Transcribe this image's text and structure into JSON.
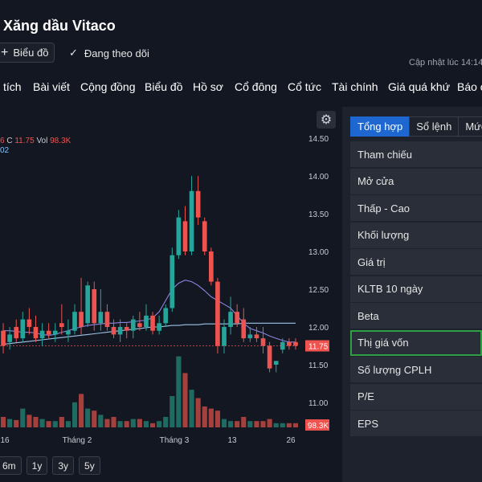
{
  "header": {
    "title": "i Xăng dầu Vitaco",
    "chart_button": "Biểu đồ",
    "follow_label": "Đang theo dõi",
    "updated": "Cập nhật lúc  14:14"
  },
  "nav": [
    "tích",
    "Bài viết",
    "Cộng đồng",
    "Biểu đồ",
    "Hồ sơ",
    "Cổ đông",
    "Cổ tức",
    "Tài chính",
    "Giá quá khứ",
    "Báo c"
  ],
  "chart": {
    "legend": {
      "prefix": "6",
      "c_label": "C",
      "c_value": "11.75",
      "vol_label": "Vol",
      "vol_value": "98.3K",
      "line2": "02"
    },
    "price_axis": [
      "14.50",
      "14.00",
      "13.50",
      "13.00",
      "12.50",
      "12.00",
      "11.75",
      "11.50",
      "11.00"
    ],
    "last_price": "11.75",
    "last_volume": "98.3K",
    "time_axis": [
      "16",
      "Tháng 2",
      "Tháng 3",
      "13",
      "26"
    ],
    "ranges": [
      "6m",
      "1y",
      "3y",
      "5y"
    ],
    "colors": {
      "up": "#26a69a",
      "down": "#ef5350",
      "ma": "#8a85e0",
      "ma_long": "#9ec3e6",
      "bg": "#131722"
    }
  },
  "sidebar": {
    "tabs": [
      "Tổng hợp",
      "Sổ lệnh",
      "Mức"
    ],
    "rows": [
      "Tham chiếu",
      "Mở cửa",
      "Thấp - Cao",
      "Khối lượng",
      "Giá trị",
      "KLTB 10 ngày",
      "Beta",
      "Thị giá vốn",
      "Số lượng CPLH",
      "P/E",
      "EPS"
    ]
  },
  "chart_data": {
    "type": "candlestick",
    "ylim": [
      10.85,
      14.55
    ],
    "candles": [
      {
        "o": 11.95,
        "h": 12.05,
        "l": 11.65,
        "c": 11.75,
        "v": 0.5
      },
      {
        "o": 11.8,
        "h": 12.0,
        "l": 11.7,
        "c": 11.9,
        "v": 0.4
      },
      {
        "o": 12.0,
        "h": 12.1,
        "l": 11.8,
        "c": 11.85,
        "v": 0.35
      },
      {
        "o": 11.85,
        "h": 12.2,
        "l": 11.8,
        "c": 12.1,
        "v": 0.9
      },
      {
        "o": 12.1,
        "h": 12.25,
        "l": 11.9,
        "c": 12.0,
        "v": 0.6
      },
      {
        "o": 12.0,
        "h": 12.15,
        "l": 11.8,
        "c": 11.85,
        "v": 0.5
      },
      {
        "o": 11.85,
        "h": 12.05,
        "l": 11.75,
        "c": 11.95,
        "v": 0.4
      },
      {
        "o": 11.95,
        "h": 12.05,
        "l": 11.85,
        "c": 11.9,
        "v": 0.3
      },
      {
        "o": 11.9,
        "h": 12.05,
        "l": 11.8,
        "c": 11.95,
        "v": 0.3
      },
      {
        "o": 12.05,
        "h": 12.3,
        "l": 11.9,
        "c": 12.0,
        "v": 0.5
      },
      {
        "o": 11.9,
        "h": 12.1,
        "l": 11.8,
        "c": 11.95,
        "v": 0.3
      },
      {
        "o": 11.95,
        "h": 12.3,
        "l": 11.9,
        "c": 12.2,
        "v": 1.2
      },
      {
        "o": 12.2,
        "h": 12.65,
        "l": 11.9,
        "c": 12.0,
        "v": 1.6
      },
      {
        "o": 12.05,
        "h": 12.6,
        "l": 12.0,
        "c": 12.55,
        "v": 0.9
      },
      {
        "o": 12.5,
        "h": 12.6,
        "l": 11.95,
        "c": 12.05,
        "v": 0.8
      },
      {
        "o": 12.05,
        "h": 12.5,
        "l": 11.95,
        "c": 12.2,
        "v": 0.6
      },
      {
        "o": 12.2,
        "h": 12.3,
        "l": 11.95,
        "c": 12.0,
        "v": 0.4
      },
      {
        "o": 12.0,
        "h": 12.1,
        "l": 11.85,
        "c": 11.9,
        "v": 0.5
      },
      {
        "o": 11.9,
        "h": 12.1,
        "l": 11.8,
        "c": 12.0,
        "v": 0.3
      },
      {
        "o": 12.0,
        "h": 12.05,
        "l": 11.85,
        "c": 11.95,
        "v": 0.3
      },
      {
        "o": 11.95,
        "h": 12.15,
        "l": 11.85,
        "c": 12.1,
        "v": 0.4
      },
      {
        "o": 12.05,
        "h": 12.2,
        "l": 11.95,
        "c": 12.0,
        "v": 0.4
      },
      {
        "o": 12.0,
        "h": 12.3,
        "l": 11.95,
        "c": 12.15,
        "v": 0.3
      },
      {
        "o": 12.15,
        "h": 12.2,
        "l": 11.9,
        "c": 11.95,
        "v": 0.2
      },
      {
        "o": 11.95,
        "h": 12.15,
        "l": 11.9,
        "c": 12.05,
        "v": 0.3
      },
      {
        "o": 12.05,
        "h": 12.3,
        "l": 12.0,
        "c": 12.25,
        "v": 0.5
      },
      {
        "o": 12.25,
        "h": 13.05,
        "l": 12.2,
        "c": 12.95,
        "v": 1.5
      },
      {
        "o": 12.95,
        "h": 13.55,
        "l": 12.9,
        "c": 13.45,
        "v": 3.4
      },
      {
        "o": 13.4,
        "h": 13.6,
        "l": 12.95,
        "c": 13.0,
        "v": 2.6
      },
      {
        "o": 13.0,
        "h": 14.0,
        "l": 12.95,
        "c": 13.8,
        "v": 1.8
      },
      {
        "o": 13.8,
        "h": 14.0,
        "l": 13.35,
        "c": 13.45,
        "v": 1.4
      },
      {
        "o": 13.4,
        "h": 13.45,
        "l": 12.95,
        "c": 13.0,
        "v": 1.0
      },
      {
        "o": 13.0,
        "h": 13.05,
        "l": 12.55,
        "c": 12.6,
        "v": 0.9
      },
      {
        "o": 12.6,
        "h": 12.65,
        "l": 11.65,
        "c": 11.75,
        "v": 0.8
      },
      {
        "o": 11.75,
        "h": 12.1,
        "l": 11.65,
        "c": 12.0,
        "v": 0.4
      },
      {
        "o": 12.0,
        "h": 12.4,
        "l": 11.9,
        "c": 12.2,
        "v": 0.3
      },
      {
        "o": 12.2,
        "h": 12.3,
        "l": 12.0,
        "c": 12.05,
        "v": 0.3
      },
      {
        "o": 12.1,
        "h": 12.25,
        "l": 11.8,
        "c": 11.85,
        "v": 0.5
      },
      {
        "o": 11.85,
        "h": 12.0,
        "l": 11.8,
        "c": 11.9,
        "v": 0.3
      },
      {
        "o": 11.9,
        "h": 12.0,
        "l": 11.8,
        "c": 11.85,
        "v": 0.3
      },
      {
        "o": 11.85,
        "h": 12.0,
        "l": 11.65,
        "c": 11.75,
        "v": 0.3
      },
      {
        "o": 11.75,
        "h": 11.8,
        "l": 11.4,
        "c": 11.45,
        "v": 0.4
      },
      {
        "o": 11.5,
        "h": 11.55,
        "l": 11.4,
        "c": 11.55,
        "v": 0.2
      },
      {
        "o": 11.7,
        "h": 11.85,
        "l": 11.65,
        "c": 11.8,
        "v": 0.2
      },
      {
        "o": 11.8,
        "h": 11.85,
        "l": 11.7,
        "c": 11.75,
        "v": 0.2
      },
      {
        "o": 11.8,
        "h": 11.85,
        "l": 11.7,
        "c": 11.75,
        "v": 0.2
      }
    ],
    "ma20": [
      11.95,
      11.95,
      11.94,
      11.93,
      11.93,
      11.92,
      11.9,
      11.89,
      11.9,
      11.93,
      11.95,
      11.98,
      12.0,
      12.02,
      12.03,
      12.04,
      12.05,
      12.05,
      12.06,
      12.06,
      12.07,
      12.08,
      12.09,
      12.12,
      12.2,
      12.35,
      12.5,
      12.58,
      12.62,
      12.6,
      12.55,
      12.48,
      12.4,
      12.35,
      12.3,
      12.25,
      12.15,
      12.05,
      11.98,
      11.95,
      11.92,
      11.88,
      11.85,
      11.82,
      11.8,
      11.8
    ],
    "ma50": [
      11.77,
      11.78,
      11.79,
      11.8,
      11.81,
      11.82,
      11.83,
      11.84,
      11.85,
      11.86,
      11.87,
      11.88,
      11.89,
      11.9,
      11.91,
      11.92,
      11.93,
      11.94,
      11.95,
      11.96,
      11.97,
      11.98,
      11.99,
      12.0,
      12.0,
      12.01,
      12.02,
      12.02,
      12.03,
      12.03,
      12.03,
      12.04,
      12.04,
      12.04,
      12.04,
      12.04,
      12.04,
      12.05,
      12.05,
      12.05,
      12.05,
      12.05,
      12.05,
      12.05,
      12.05,
      12.05
    ]
  }
}
